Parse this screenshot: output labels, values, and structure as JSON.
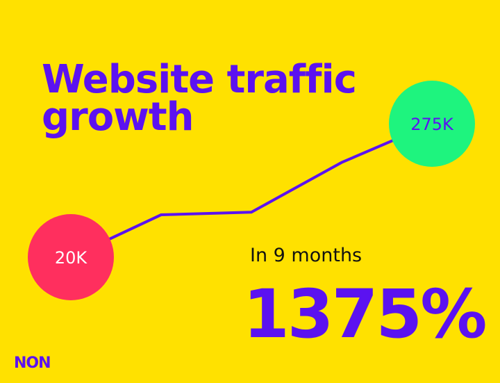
{
  "chart_data": {
    "type": "line",
    "title": "Website traffic growth",
    "annotations": [
      "In 9 months",
      "1375%"
    ],
    "logo": "NON",
    "categories": [
      null,
      null,
      null,
      null,
      null
    ],
    "series": [
      {
        "color": "#5b12f0",
        "values": [
          20,
          101,
          106,
          201,
          275
        ],
        "value_labels": [
          "20K",
          null,
          null,
          null,
          "275K"
        ]
      }
    ],
    "point_colors": [
      "#ff2f5e",
      null,
      null,
      null,
      "#1ef47e"
    ],
    "grid": false
  }
}
